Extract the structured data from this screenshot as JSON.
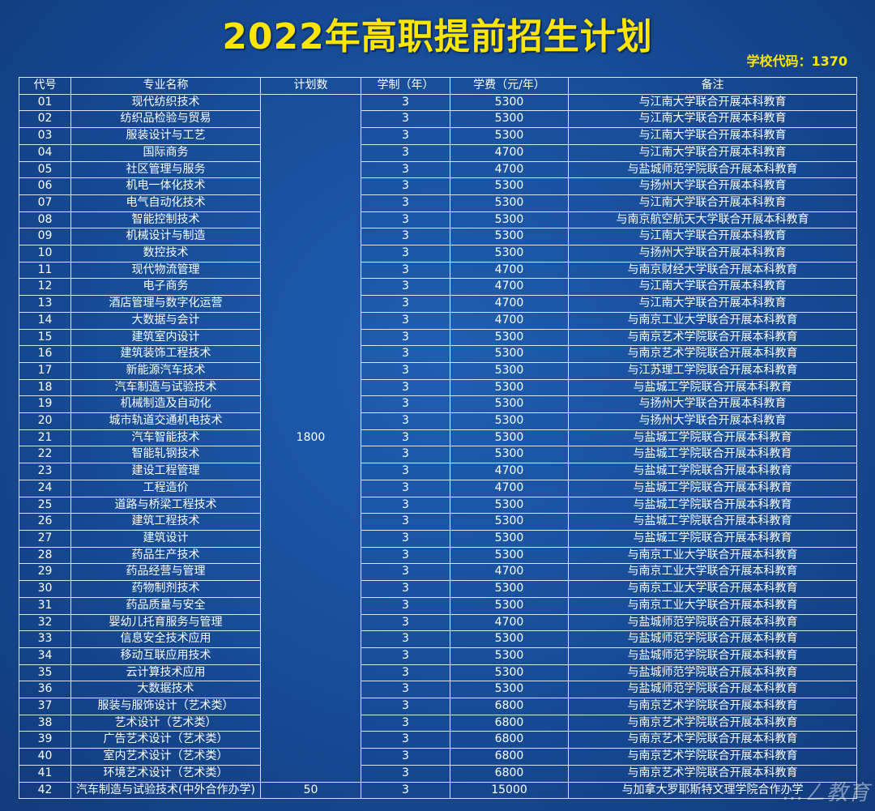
{
  "title": "2022年高职提前招生计划",
  "school_code": "学校代码：1370",
  "headers": [
    "代号",
    "专业名称",
    "计划数",
    "学制（年）",
    "学费（元/年）",
    "备注"
  ],
  "plan_main": "1800",
  "rows": [
    {
      "code": "01",
      "name": "现代纺织技术",
      "years": "3",
      "fee": "5300",
      "note": "与江南大学联合开展本科教育"
    },
    {
      "code": "02",
      "name": "纺织品检验与贸易",
      "years": "3",
      "fee": "5300",
      "note": "与江南大学联合开展本科教育"
    },
    {
      "code": "03",
      "name": "服装设计与工艺",
      "years": "3",
      "fee": "5300",
      "note": "与江南大学联合开展本科教育"
    },
    {
      "code": "04",
      "name": "国际商务",
      "years": "3",
      "fee": "4700",
      "note": "与江南大学联合开展本科教育"
    },
    {
      "code": "05",
      "name": "社区管理与服务",
      "years": "3",
      "fee": "4700",
      "note": "与盐城师范学院联合开展本科教育"
    },
    {
      "code": "06",
      "name": "机电一体化技术",
      "years": "3",
      "fee": "5300",
      "note": "与扬州大学联合开展本科教育"
    },
    {
      "code": "07",
      "name": "电气自动化技术",
      "years": "3",
      "fee": "5300",
      "note": "与江南大学联合开展本科教育"
    },
    {
      "code": "08",
      "name": "智能控制技术",
      "years": "3",
      "fee": "5300",
      "note": "与南京航空航天大学联合开展本科教育"
    },
    {
      "code": "09",
      "name": "机械设计与制造",
      "years": "3",
      "fee": "5300",
      "note": "与江南大学联合开展本科教育"
    },
    {
      "code": "10",
      "name": "数控技术",
      "years": "3",
      "fee": "5300",
      "note": "与扬州大学联合开展本科教育"
    },
    {
      "code": "11",
      "name": "现代物流管理",
      "years": "3",
      "fee": "4700",
      "note": "与南京财经大学联合开展本科教育"
    },
    {
      "code": "12",
      "name": "电子商务",
      "years": "3",
      "fee": "4700",
      "note": "与江南大学联合开展本科教育"
    },
    {
      "code": "13",
      "name": "酒店管理与数字化运营",
      "years": "3",
      "fee": "4700",
      "note": "与江南大学联合开展本科教育"
    },
    {
      "code": "14",
      "name": "大数据与会计",
      "years": "3",
      "fee": "4700",
      "note": "与南京工业大学联合开展本科教育"
    },
    {
      "code": "15",
      "name": "建筑室内设计",
      "years": "3",
      "fee": "5300",
      "note": "与南京艺术学院联合开展本科教育"
    },
    {
      "code": "16",
      "name": "建筑装饰工程技术",
      "years": "3",
      "fee": "5300",
      "note": "与南京艺术学院联合开展本科教育"
    },
    {
      "code": "17",
      "name": "新能源汽车技术",
      "years": "3",
      "fee": "5300",
      "note": "与江苏理工学院联合开展本科教育"
    },
    {
      "code": "18",
      "name": "汽车制造与试验技术",
      "years": "3",
      "fee": "5300",
      "note": "与盐城工学院联合开展本科教育"
    },
    {
      "code": "19",
      "name": "机械制造及自动化",
      "years": "3",
      "fee": "5300",
      "note": "与扬州大学联合开展本科教育"
    },
    {
      "code": "20",
      "name": "城市轨道交通机电技术",
      "years": "3",
      "fee": "5300",
      "note": "与扬州大学联合开展本科教育"
    },
    {
      "code": "21",
      "name": "汽车智能技术",
      "years": "3",
      "fee": "5300",
      "note": "与盐城工学院联合开展本科教育"
    },
    {
      "code": "22",
      "name": "智能轧钢技术",
      "years": "3",
      "fee": "5300",
      "note": "与盐城工学院联合开展本科教育"
    },
    {
      "code": "23",
      "name": "建设工程管理",
      "years": "3",
      "fee": "4700",
      "note": "与盐城工学院联合开展本科教育"
    },
    {
      "code": "24",
      "name": "工程造价",
      "years": "3",
      "fee": "4700",
      "note": "与盐城工学院联合开展本科教育"
    },
    {
      "code": "25",
      "name": "道路与桥梁工程技术",
      "years": "3",
      "fee": "5300",
      "note": "与盐城工学院联合开展本科教育"
    },
    {
      "code": "26",
      "name": "建筑工程技术",
      "years": "3",
      "fee": "5300",
      "note": "与盐城工学院联合开展本科教育"
    },
    {
      "code": "27",
      "name": "建筑设计",
      "years": "3",
      "fee": "5300",
      "note": "与盐城工学院联合开展本科教育"
    },
    {
      "code": "28",
      "name": "药品生产技术",
      "years": "3",
      "fee": "5300",
      "note": "与南京工业大学联合开展本科教育"
    },
    {
      "code": "29",
      "name": "药品经营与管理",
      "years": "3",
      "fee": "4700",
      "note": "与南京工业大学联合开展本科教育"
    },
    {
      "code": "30",
      "name": "药物制剂技术",
      "years": "3",
      "fee": "5300",
      "note": "与南京工业大学联合开展本科教育"
    },
    {
      "code": "31",
      "name": "药品质量与安全",
      "years": "3",
      "fee": "5300",
      "note": "与南京工业大学联合开展本科教育"
    },
    {
      "code": "32",
      "name": "婴幼儿托育服务与管理",
      "years": "3",
      "fee": "4700",
      "note": "与盐城师范学院联合开展本科教育"
    },
    {
      "code": "33",
      "name": "信息安全技术应用",
      "years": "3",
      "fee": "5300",
      "note": "与盐城师范学院联合开展本科教育"
    },
    {
      "code": "34",
      "name": "移动互联应用技术",
      "years": "3",
      "fee": "5300",
      "note": "与盐城师范学院联合开展本科教育"
    },
    {
      "code": "35",
      "name": "云计算技术应用",
      "years": "3",
      "fee": "5300",
      "note": "与盐城师范学院联合开展本科教育"
    },
    {
      "code": "36",
      "name": "大数据技术",
      "years": "3",
      "fee": "5300",
      "note": "与盐城师范学院联合开展本科教育"
    },
    {
      "code": "37",
      "name": "服装与服饰设计（艺术类）",
      "years": "3",
      "fee": "6800",
      "note": "与南京艺术学院联合开展本科教育"
    },
    {
      "code": "38",
      "name": "艺术设计（艺术类）",
      "years": "3",
      "fee": "6800",
      "note": "与南京艺术学院联合开展本科教育"
    },
    {
      "code": "39",
      "name": "广告艺术设计（艺术类）",
      "years": "3",
      "fee": "6800",
      "note": "与南京艺术学院联合开展本科教育"
    },
    {
      "code": "40",
      "name": "室内艺术设计（艺术类）",
      "years": "3",
      "fee": "6800",
      "note": "与南京艺术学院联合开展本科教育"
    },
    {
      "code": "41",
      "name": "环境艺术设计（艺术类）",
      "years": "3",
      "fee": "6800",
      "note": "与南京艺术学院联合开展本科教育"
    }
  ],
  "last_row": {
    "code": "42",
    "name": "汽车制造与试验技术(中外合作办学)",
    "plan": "50",
    "years": "3",
    "fee": "15000",
    "note": "与加拿大罗耶斯特文理学院合作办学"
  },
  "watermark": "…ㄥ教育"
}
